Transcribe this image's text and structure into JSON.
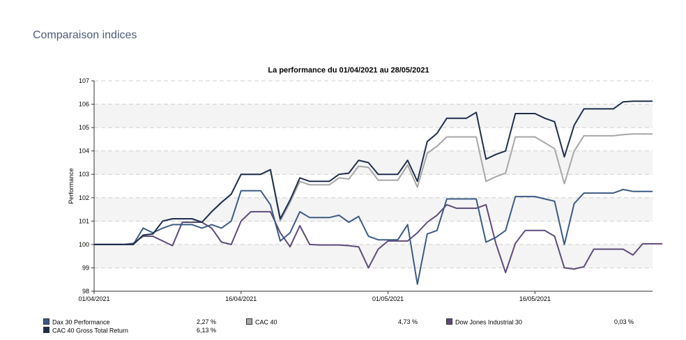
{
  "page": {
    "title": "Comparaison indices"
  },
  "chart_data": {
    "type": "line",
    "title": "La performance du 01/04/2021 au 28/05/2021",
    "ylabel": "Performance",
    "xlabel": "",
    "ylim": [
      98,
      107
    ],
    "yticks": [
      98,
      99,
      100,
      101,
      102,
      103,
      104,
      105,
      106,
      107
    ],
    "xrange": [
      "01/04/2021",
      "28/05/2021"
    ],
    "xticks": [
      "01/04/2021",
      "16/04/2021",
      "01/05/2021",
      "16/05/2021"
    ],
    "grid": "horizontal-dashed",
    "legend_position": "bottom",
    "x": [
      "2021-04-01",
      "2021-04-02",
      "2021-04-05",
      "2021-04-06",
      "2021-04-07",
      "2021-04-08",
      "2021-04-09",
      "2021-04-12",
      "2021-04-13",
      "2021-04-14",
      "2021-04-15",
      "2021-04-16",
      "2021-04-19",
      "2021-04-20",
      "2021-04-21",
      "2021-04-22",
      "2021-04-23",
      "2021-04-26",
      "2021-04-27",
      "2021-04-28",
      "2021-04-29",
      "2021-04-30",
      "2021-05-03",
      "2021-05-04",
      "2021-05-05",
      "2021-05-06",
      "2021-05-07",
      "2021-05-10",
      "2021-05-11",
      "2021-05-12",
      "2021-05-13",
      "2021-05-14",
      "2021-05-17",
      "2021-05-18",
      "2021-05-19",
      "2021-05-20",
      "2021-05-21",
      "2021-05-24",
      "2021-05-25",
      "2021-05-26",
      "2021-05-27",
      "2021-05-28"
    ],
    "series": [
      {
        "name": "Dax 30 Performance",
        "color": "#3d5a85",
        "total": "2,27 %",
        "values": [
          [
            0,
            100
          ],
          [
            4,
            100
          ],
          [
            5,
            100.7
          ],
          [
            6,
            100.5
          ],
          [
            7,
            100.7
          ],
          [
            8,
            100.85
          ],
          [
            9,
            100.85
          ],
          [
            10,
            100.85
          ],
          [
            11,
            100.7
          ],
          [
            12,
            100.85
          ],
          [
            13,
            100.7
          ],
          [
            14,
            101
          ],
          [
            15,
            102.3
          ],
          [
            16,
            102.3
          ],
          [
            17,
            102.3
          ],
          [
            18,
            101.7
          ],
          [
            19,
            100.15
          ],
          [
            20,
            100.5
          ],
          [
            21,
            101.4
          ],
          [
            22,
            101.15
          ],
          [
            23,
            101.15
          ],
          [
            24,
            101.15
          ],
          [
            25,
            101.25
          ],
          [
            26,
            100.95
          ],
          [
            27,
            101.2
          ],
          [
            28,
            100.35
          ],
          [
            29,
            100.2
          ],
          [
            30,
            100.2
          ],
          [
            31,
            100.2
          ],
          [
            32,
            100.85
          ],
          [
            33,
            98.3
          ],
          [
            34,
            100.45
          ],
          [
            35,
            100.6
          ],
          [
            36,
            101.95
          ],
          [
            37,
            101.95
          ],
          [
            38,
            101.95
          ],
          [
            39,
            101.95
          ],
          [
            40,
            100.1
          ],
          [
            41,
            100.3
          ],
          [
            42,
            100.6
          ],
          [
            43,
            102.05
          ],
          [
            44,
            102.05
          ],
          [
            45,
            102.05
          ],
          [
            46,
            101.95
          ],
          [
            47,
            101.85
          ],
          [
            48,
            100
          ],
          [
            49,
            101.75
          ],
          [
            50,
            102.2
          ],
          [
            51,
            102.2
          ],
          [
            52,
            102.2
          ],
          [
            53,
            102.2
          ],
          [
            54,
            102.35
          ],
          [
            55,
            102.27
          ],
          [
            56,
            102.27
          ],
          [
            57,
            102.27
          ]
        ]
      },
      {
        "name": "CAC 40",
        "color": "#a7a7a7",
        "total": "4,73 %",
        "values": [
          [
            0,
            100
          ],
          [
            4,
            100
          ],
          [
            5,
            100.4
          ],
          [
            6,
            100.45
          ],
          [
            7,
            101
          ],
          [
            8,
            101.1
          ],
          [
            9,
            101.1
          ],
          [
            10,
            101.1
          ],
          [
            11,
            100.95
          ],
          [
            12,
            101.4
          ],
          [
            13,
            101.8
          ],
          [
            14,
            102.15
          ],
          [
            15,
            103
          ],
          [
            16,
            103
          ],
          [
            17,
            103
          ],
          [
            18,
            103.2
          ],
          [
            19,
            101
          ],
          [
            20,
            101.8
          ],
          [
            21,
            102.7
          ],
          [
            22,
            102.55
          ],
          [
            23,
            102.55
          ],
          [
            24,
            102.55
          ],
          [
            25,
            102.85
          ],
          [
            26,
            102.8
          ],
          [
            27,
            103.35
          ],
          [
            28,
            103.3
          ],
          [
            29,
            102.75
          ],
          [
            30,
            102.75
          ],
          [
            31,
            102.75
          ],
          [
            32,
            103.4
          ],
          [
            33,
            102.45
          ],
          [
            34,
            103.9
          ],
          [
            35,
            104.2
          ],
          [
            36,
            104.6
          ],
          [
            37,
            104.6
          ],
          [
            38,
            104.6
          ],
          [
            39,
            104.6
          ],
          [
            40,
            102.7
          ],
          [
            41,
            102.9
          ],
          [
            42,
            103.05
          ],
          [
            43,
            104.6
          ],
          [
            44,
            104.6
          ],
          [
            45,
            104.6
          ],
          [
            46,
            104.35
          ],
          [
            47,
            104.1
          ],
          [
            48,
            102.6
          ],
          [
            49,
            104
          ],
          [
            50,
            104.65
          ],
          [
            51,
            104.65
          ],
          [
            52,
            104.65
          ],
          [
            53,
            104.65
          ],
          [
            54,
            104.7
          ],
          [
            55,
            104.73
          ],
          [
            56,
            104.73
          ],
          [
            57,
            104.73
          ]
        ]
      },
      {
        "name": "Dow Jones Industrial 30",
        "color": "#5e4a79",
        "total": "0,03 %",
        "values": [
          [
            0,
            100
          ],
          [
            3,
            100
          ],
          [
            4,
            100.05
          ],
          [
            5,
            100.35
          ],
          [
            6,
            100.35
          ],
          [
            7,
            100.15
          ],
          [
            8,
            99.95
          ],
          [
            9,
            100.95
          ],
          [
            10,
            100.95
          ],
          [
            11,
            100.95
          ],
          [
            12,
            100.7
          ],
          [
            13,
            100.1
          ],
          [
            14,
            100
          ],
          [
            15,
            101
          ],
          [
            16,
            101.4
          ],
          [
            17,
            101.4
          ],
          [
            18,
            101.4
          ],
          [
            19,
            100.5
          ],
          [
            20,
            99.9
          ],
          [
            21,
            100.8
          ],
          [
            22,
            100
          ],
          [
            23,
            99.98
          ],
          [
            24,
            99.98
          ],
          [
            25,
            99.98
          ],
          [
            26,
            99.95
          ],
          [
            27,
            99.9
          ],
          [
            28,
            99
          ],
          [
            29,
            99.8
          ],
          [
            30,
            100.15
          ],
          [
            31,
            100.15
          ],
          [
            32,
            100.15
          ],
          [
            33,
            100.5
          ],
          [
            34,
            100.95
          ],
          [
            35,
            101.25
          ],
          [
            36,
            101.7
          ],
          [
            37,
            101.55
          ],
          [
            38,
            101.55
          ],
          [
            39,
            101.55
          ],
          [
            40,
            101.7
          ],
          [
            41,
            100.05
          ],
          [
            42,
            98.8
          ],
          [
            43,
            100.05
          ],
          [
            44,
            100.6
          ],
          [
            45,
            100.6
          ],
          [
            46,
            100.6
          ],
          [
            47,
            100.35
          ],
          [
            48,
            99
          ],
          [
            49,
            98.95
          ],
          [
            50,
            99.05
          ],
          [
            51,
            99.8
          ],
          [
            52,
            99.8
          ],
          [
            53,
            99.8
          ],
          [
            54,
            99.8
          ],
          [
            55,
            99.55
          ],
          [
            56,
            100.03
          ],
          [
            57,
            100.03
          ],
          [
            58,
            100.03
          ]
        ]
      },
      {
        "name": "CAC 40 Gross Total Return",
        "color": "#1e2f4e",
        "total": "6,13 %",
        "values": [
          [
            0,
            100
          ],
          [
            4,
            100
          ],
          [
            5,
            100.4
          ],
          [
            6,
            100.45
          ],
          [
            7,
            101
          ],
          [
            8,
            101.1
          ],
          [
            9,
            101.1
          ],
          [
            10,
            101.1
          ],
          [
            11,
            100.95
          ],
          [
            12,
            101.4
          ],
          [
            13,
            101.8
          ],
          [
            14,
            102.15
          ],
          [
            15,
            103
          ],
          [
            16,
            103
          ],
          [
            17,
            103
          ],
          [
            18,
            103.2
          ],
          [
            19,
            101.1
          ],
          [
            20,
            101.9
          ],
          [
            21,
            102.85
          ],
          [
            22,
            102.7
          ],
          [
            23,
            102.7
          ],
          [
            24,
            102.7
          ],
          [
            25,
            103
          ],
          [
            26,
            103.05
          ],
          [
            27,
            103.6
          ],
          [
            28,
            103.5
          ],
          [
            29,
            103
          ],
          [
            30,
            103
          ],
          [
            31,
            103
          ],
          [
            32,
            103.6
          ],
          [
            33,
            102.7
          ],
          [
            34,
            104.4
          ],
          [
            35,
            104.75
          ],
          [
            36,
            105.4
          ],
          [
            37,
            105.4
          ],
          [
            38,
            105.4
          ],
          [
            39,
            105.65
          ],
          [
            40,
            103.65
          ],
          [
            41,
            103.85
          ],
          [
            42,
            104
          ],
          [
            43,
            105.6
          ],
          [
            44,
            105.6
          ],
          [
            45,
            105.6
          ],
          [
            46,
            105.4
          ],
          [
            47,
            105.25
          ],
          [
            48,
            103.75
          ],
          [
            49,
            105.1
          ],
          [
            50,
            105.8
          ],
          [
            51,
            105.8
          ],
          [
            52,
            105.8
          ],
          [
            53,
            105.8
          ],
          [
            54,
            106.1
          ],
          [
            55,
            106.13
          ],
          [
            56,
            106.13
          ],
          [
            57,
            106.13
          ]
        ]
      }
    ]
  },
  "legend": [
    {
      "name": "Dax 30 Performance",
      "value": "2,27 %",
      "color": "#3d5a85"
    },
    {
      "name": "CAC 40",
      "value": "4,73 %",
      "color": "#a7a7a7"
    },
    {
      "name": "Dow Jones Industrial 30",
      "value": "0,03 %",
      "color": "#5e4a79"
    },
    {
      "name": "CAC 40 Gross Total Return",
      "value": "6,13 %",
      "color": "#1e2f4e"
    }
  ]
}
